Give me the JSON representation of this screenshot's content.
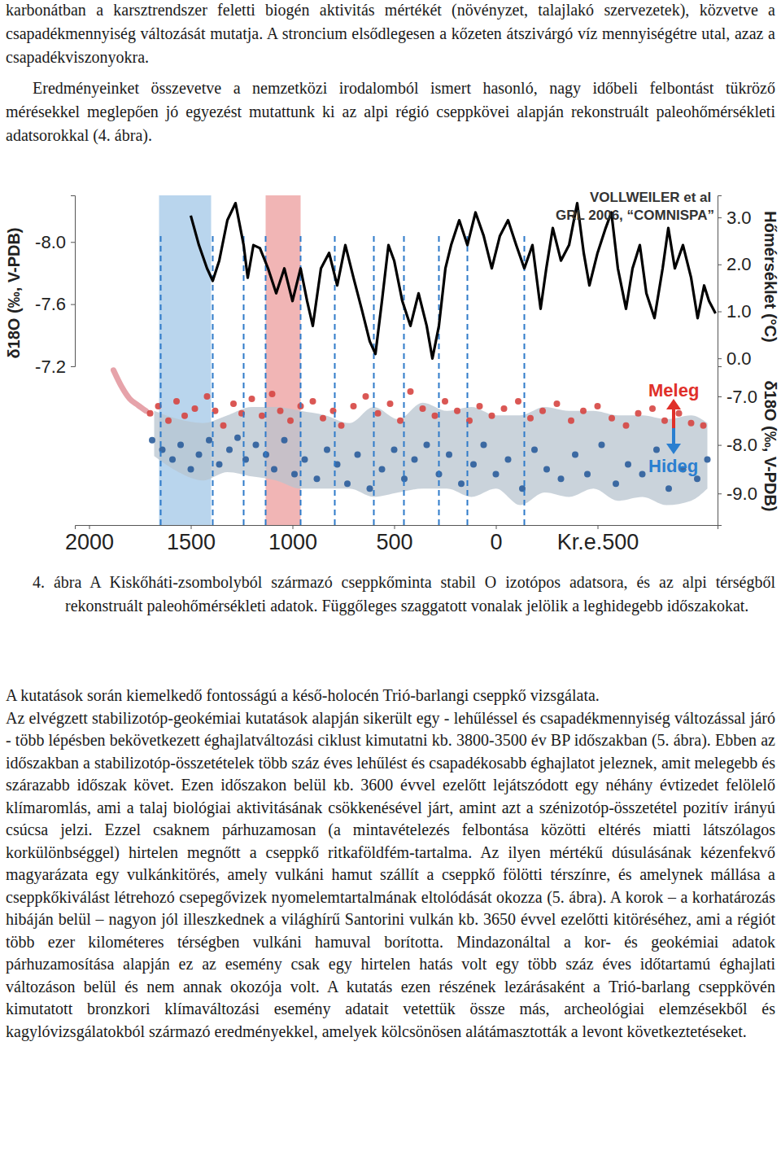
{
  "paragraphs_top": [
    "karbonátban a karsztrendszer feletti biogén aktivitás mértékét (növényzet, talajlakó szervezetek), közvetve a csapadékmennyiség változását mutatja. A stroncium elsődlegesen a kőzeten átszivárgó víz mennyiségétre utal, azaz a csapadékviszonyokra.",
    "Eredményeinket összevetve a nemzetközi irodalomból ismert hasonló, nagy időbeli felbontást tükröző mérésekkel meglepően jó egyezést mutattunk ki az alpi régió cseppkövei alapján rekonstruált paleohőmérsékleti adatsorokkal (4. ábra)."
  ],
  "chart_data": [
    {
      "type": "line",
      "annotations": [
        "VOLLWEILER et al",
        "GRL 2006, “COMNISPA”"
      ],
      "x": [
        1500,
        1460,
        1420,
        1392,
        1360,
        1320,
        1280,
        1240,
        1220,
        1192,
        1160,
        1120,
        1080,
        1040,
        1000,
        960,
        928,
        900,
        860,
        820,
        780,
        740,
        700,
        660,
        620,
        592,
        560,
        528,
        500,
        460,
        420,
        380,
        340,
        312,
        280,
        248,
        220,
        180,
        140,
        100,
        60,
        20,
        -20,
        -60,
        -100,
        -140,
        -180,
        -220,
        -248,
        -280,
        -320,
        -360,
        -400,
        -432,
        -460,
        -500,
        -540,
        -568,
        -600,
        -640,
        -672,
        -708,
        -740,
        -780,
        -820,
        -848,
        -880,
        -920,
        -960,
        -992,
        -1024,
        -1048,
        -1080
      ],
      "series": [
        {
          "color": "#000000",
          "values": [
            -8.17,
            -7.98,
            -7.83,
            -7.75,
            -7.88,
            -8.14,
            -8.25,
            -7.98,
            -7.77,
            -7.98,
            -7.96,
            -7.83,
            -7.67,
            -7.83,
            -7.62,
            -7.83,
            -7.62,
            -7.46,
            -7.83,
            -7.93,
            -7.72,
            -7.98,
            -7.77,
            -7.57,
            -7.36,
            -7.28,
            -7.62,
            -7.98,
            -7.88,
            -7.62,
            -7.46,
            -7.67,
            -7.46,
            -7.25,
            -7.46,
            -7.83,
            -7.98,
            -8.14,
            -7.98,
            -8.19,
            -8.04,
            -7.83,
            -8.04,
            -8.14,
            -7.98,
            -7.83,
            -7.98,
            -7.57,
            -7.83,
            -8.09,
            -7.88,
            -7.98,
            -8.25,
            -7.93,
            -7.72,
            -7.93,
            -8.09,
            -8.19,
            -7.83,
            -7.57,
            -7.83,
            -7.98,
            -7.67,
            -7.51,
            -7.83,
            -8.09,
            -7.83,
            -7.98,
            -7.77,
            -7.51,
            -7.72,
            -7.62,
            -7.54
          ]
        }
      ],
      "xlim": [
        2070,
        -1090
      ],
      "xticks": [
        2000,
        1500,
        1000,
        500,
        0,
        {
          "value": -500,
          "label": "Kr.e.500"
        }
      ],
      "ylim": [
        -7.2,
        -8.3
      ],
      "yticks": [
        {
          "value": -8,
          "label": "-8.0"
        },
        {
          "value": -7.6,
          "label": "-7.6"
        },
        {
          "value": -7.2,
          "label": "-7.2"
        }
      ],
      "y_label": "δ18O (‰, V-PDB)",
      "y2lim": [
        -0.17,
        3.47
      ],
      "y2ticks": [
        {
          "value": 3,
          "label": "3.0"
        },
        {
          "value": 2,
          "label": "2.0"
        },
        {
          "value": 1,
          "label": "1.0"
        },
        {
          "value": 0,
          "label": "0.0"
        }
      ],
      "y2_label": "Hőmérséklet (°C)",
      "bands": [
        {
          "from": 1656,
          "to": 1400,
          "color": "#a8cbe9"
        },
        {
          "from": 1132,
          "to": 960,
          "color": "#eea3a3"
        }
      ],
      "cold_periods": [
        1648,
        1392,
        1240,
        1132,
        960,
        792,
        600,
        452,
        280,
        140,
        -140
      ]
    },
    {
      "type": "scatter",
      "xlim": [
        2070,
        -1090
      ],
      "ylim": [
        -9.65,
        -6.38
      ],
      "yticks": [
        {
          "value": -7,
          "label": "-7.0"
        },
        {
          "value": -8,
          "label": "-8.0"
        },
        {
          "value": -9,
          "label": "-9.0"
        }
      ],
      "y_label": "δ18O (‰, V-PDB)",
      "annotations": [
        {
          "text": "Meleg",
          "color": "#e0302a"
        },
        {
          "text": "Hideg",
          "color": "#2a7fd0"
        }
      ],
      "series": [
        {
          "type": "area",
          "color": "#b8c4cf",
          "x": [
            1680,
            1560,
            1440,
            1320,
            1200,
            1080,
            960,
            840,
            720,
            600,
            480,
            360,
            240,
            120,
            0,
            -120,
            -240,
            -360,
            -480,
            -600,
            -720,
            -840,
            -960,
            -1040
          ],
          "values": [
            -7.3,
            -7.47,
            -7.55,
            -7.39,
            -7.22,
            -7.22,
            -7.3,
            -7.39,
            -7.55,
            -7.22,
            -7.47,
            -7.13,
            -7.3,
            -7.22,
            -7.39,
            -7.39,
            -7.22,
            -7.3,
            -7.3,
            -7.39,
            -7.39,
            -7.47,
            -7.39,
            -7.55
          ],
          "lower": [
            -8.23,
            -8.56,
            -8.73,
            -8.56,
            -8.65,
            -8.73,
            -8.9,
            -8.9,
            -8.9,
            -9.07,
            -8.98,
            -8.9,
            -8.9,
            -9.07,
            -8.9,
            -9.24,
            -8.98,
            -9.07,
            -8.9,
            -9.15,
            -9.07,
            -9.24,
            -9.15,
            -8.9
          ]
        },
        {
          "type": "line",
          "color": "#e6a3aa",
          "x": [
            1880,
            1840,
            1800,
            1760,
            1720
          ],
          "values": [
            -6.46,
            -6.8,
            -7.05,
            -7.18,
            -7.3
          ]
        },
        {
          "type": "scatter",
          "color": "#d64541",
          "x": [
            1700,
            1660,
            1610,
            1570,
            1530,
            1480,
            1420,
            1380,
            1340,
            1290,
            1250,
            1200,
            1150,
            1100,
            1060,
            1010,
            960,
            900,
            850,
            800,
            760,
            700,
            640,
            580,
            520,
            470,
            420,
            360,
            300,
            250,
            190,
            130,
            80,
            20,
            -40,
            -110,
            -170,
            -230,
            -300,
            -370,
            -430,
            -500,
            -570,
            -640,
            -700,
            -770,
            -830,
            -900,
            -960,
            -1020
          ],
          "values": [
            -7.35,
            -7.2,
            -7.5,
            -7.1,
            -7.4,
            -7.25,
            -7.0,
            -7.3,
            -7.6,
            -7.15,
            -7.35,
            -7.05,
            -7.4,
            -6.95,
            -7.3,
            -7.5,
            -7.2,
            -7.1,
            -7.45,
            -7.3,
            -7.6,
            -7.2,
            -7.0,
            -7.35,
            -7.15,
            -7.5,
            -6.9,
            -7.25,
            -7.4,
            -7.1,
            -7.3,
            -7.5,
            -7.2,
            -7.4,
            -7.25,
            -7.1,
            -7.45,
            -7.3,
            -7.15,
            -7.5,
            -7.3,
            -7.2,
            -7.45,
            -7.6,
            -7.35,
            -7.25,
            -7.5,
            -7.35,
            -7.55,
            -7.6
          ]
        },
        {
          "type": "scatter",
          "color": "#2b5d9b",
          "x": [
            1690,
            1640,
            1590,
            1550,
            1500,
            1460,
            1410,
            1360,
            1310,
            1270,
            1230,
            1180,
            1130,
            1090,
            1040,
            990,
            940,
            880,
            830,
            780,
            730,
            680,
            620,
            560,
            500,
            450,
            400,
            340,
            280,
            230,
            170,
            110,
            60,
            0,
            -60,
            -130,
            -190,
            -250,
            -320,
            -390,
            -450,
            -520,
            -590,
            -650,
            -720,
            -790,
            -850,
            -920,
            -990,
            -1040
          ],
          "values": [
            -7.9,
            -8.1,
            -8.3,
            -8.0,
            -8.5,
            -8.2,
            -7.9,
            -8.4,
            -8.1,
            -7.85,
            -8.3,
            -8.0,
            -8.2,
            -8.5,
            -7.9,
            -8.6,
            -8.3,
            -8.7,
            -8.1,
            -8.4,
            -8.8,
            -8.2,
            -8.9,
            -8.5,
            -8.1,
            -8.7,
            -8.3,
            -8.0,
            -8.6,
            -8.2,
            -8.8,
            -8.4,
            -8.0,
            -8.6,
            -8.3,
            -8.9,
            -8.1,
            -8.5,
            -8.7,
            -8.2,
            -8.6,
            -8.0,
            -8.8,
            -8.4,
            -8.6,
            -8.1,
            -8.9,
            -8.5,
            -8.7,
            -8.3
          ]
        }
      ]
    }
  ],
  "caption": "4. ábra A Kiskőháti-zsombolyból származó cseppkőminta stabil O izotópos adatsora, és az alpi térségből rekonstruált paleohőmérsékleti adatok. Függőleges szaggatott vonalak jelölik a leghidegebb időszakokat.",
  "paragraphs_bottom": [
    "A kutatások során kiemelkedő fontosságú a késő-holocén Trió-barlangi cseppkő vizsgálata.",
    "Az elvégzett stabilizotóp-geokémiai kutatások alapján sikerült egy - lehűléssel és csapadékmennyiség változással járó - több lépésben bekövetkezett éghajlatváltozási ciklust kimutatni kb. 3800-3500 év BP időszakban (5. ábra). Ebben az időszakban a stabilizotóp-összetételek több száz éves lehűlést és csapadékosabb éghajlatot jeleznek, amit melegebb és szárazabb időszak követ. Ezen időszakon belül kb. 3600 évvel ezelőtt lejátszódott egy néhány évtizedet felölelő klímaromlás, ami a talaj biológiai aktivitásának csökkenésével járt, amint azt a szénizotóp-összetétel pozitív irányú csúcsa jelzi. Ezzel csaknem párhuzamosan (a mintavételezés felbontása közötti eltérés miatti látszólagos korkülönbséggel) hirtelen megnőtt a cseppkő ritkaföldfém-tartalma. Az ilyen mértékű dúsulásának kézenfekvő magyarázata egy vulkánkitörés, amely vulkáni hamut szállít a cseppkő fölötti térszínre, és amelynek mállása a cseppkőkiválást létrehozó csepegővizek nyomelemtartalmának eltolódását okozza (5. ábra). A korok – a korhatározás hibáján belül – nagyon jól illeszkednek a világhírű Santorini vulkán kb. 3650 évvel ezelőtti kitöréséhez, ami a régiót több ezer kilométeres térségben vulkáni hamuval borította. Mindazonáltal a kor- és geokémiai adatok párhuzamosítása alapján ez az esemény csak egy hirtelen hatás volt egy több száz éves időtartamú éghajlati változáson belül és nem annak okozója volt. A kutatás ezen részének lezárásaként a Trió-barlang cseppkövén kimutatott bronzkori klímaváltozási esemény adatait vetettük össze más, archeológiai elemzésekből és kagylóvizsgálatokból származó eredményekkel, amelyek kölcsönösen alátámasztották a levont következtetéseket."
  ]
}
